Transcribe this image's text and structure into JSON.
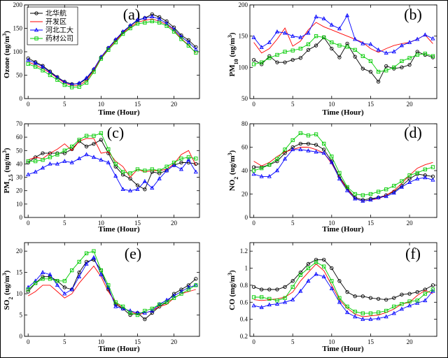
{
  "chart_data": [
    {
      "type": "line",
      "panel_label": "(a)",
      "xlabel": "Time (Hour)",
      "ylabel": "Ozone (ug/m³)",
      "ylabel_parts": [
        {
          "t": "Ozone (ug/m"
        },
        {
          "t": "3",
          "sup": true
        },
        {
          "t": ")"
        }
      ],
      "xlim": [
        -0.5,
        23.5
      ],
      "ylim": [
        0,
        200
      ],
      "xticks": [
        0,
        5,
        10,
        15,
        20
      ],
      "yticks": [
        0,
        50,
        100,
        150,
        200
      ],
      "legend": "top-left",
      "x": [
        0,
        1,
        2,
        3,
        4,
        5,
        6,
        7,
        8,
        9,
        10,
        11,
        12,
        13,
        14,
        15,
        16,
        17,
        18,
        19,
        20,
        21,
        22,
        23
      ],
      "series": [
        {
          "name": "北华航",
          "color": "#000000",
          "marker": "circle",
          "values": [
            86,
            78,
            70,
            58,
            46,
            36,
            31,
            32,
            42,
            62,
            88,
            108,
            125,
            142,
            155,
            167,
            172,
            180,
            174,
            165,
            152,
            135,
            125,
            110
          ]
        },
        {
          "name": "开发区",
          "color": "#ff0000",
          "marker": "none",
          "values": [
            78,
            72,
            64,
            55,
            44,
            33,
            28,
            28,
            38,
            60,
            87,
            106,
            123,
            140,
            152,
            163,
            167,
            170,
            165,
            158,
            146,
            128,
            114,
            97
          ]
        },
        {
          "name": "河北工大",
          "color": "#0000ff",
          "marker": "triangle",
          "values": [
            82,
            76,
            68,
            56,
            45,
            35,
            30,
            33,
            44,
            63,
            89,
            108,
            126,
            143,
            156,
            168,
            172,
            175,
            170,
            160,
            148,
            132,
            120,
            105
          ]
        },
        {
          "name": "药材公司",
          "color": "#00cc00",
          "marker": "square",
          "values": [
            74,
            68,
            60,
            50,
            40,
            29,
            24,
            25,
            34,
            57,
            85,
            104,
            120,
            138,
            150,
            160,
            162,
            165,
            162,
            155,
            143,
            127,
            113,
            98
          ]
        }
      ]
    },
    {
      "type": "line",
      "panel_label": "(b)",
      "xlabel": "Time (Hour)",
      "ylabel": "PM10 (ug/m³)",
      "ylabel_parts": [
        {
          "t": "PM"
        },
        {
          "t": "10",
          "sub": true
        },
        {
          "t": " (ug/m"
        },
        {
          "t": "3",
          "sup": true
        },
        {
          "t": ")"
        }
      ],
      "xlim": [
        -0.5,
        23.5
      ],
      "ylim": [
        50,
        200
      ],
      "xticks": [
        0,
        5,
        10,
        15,
        20
      ],
      "yticks": [
        50,
        100,
        150,
        200
      ],
      "x": [
        0,
        1,
        2,
        3,
        4,
        5,
        6,
        7,
        8,
        9,
        10,
        11,
        12,
        13,
        14,
        15,
        16,
        17,
        18,
        19,
        20,
        21,
        22,
        23
      ],
      "series": [
        {
          "name": "北华航",
          "color": "#000000",
          "marker": "circle",
          "values": [
            112,
            105,
            118,
            108,
            108,
            112,
            115,
            128,
            135,
            148,
            130,
            116,
            138,
            117,
            98,
            93,
            77,
            102,
            98,
            100,
            104,
            125,
            120,
            116
          ]
        },
        {
          "name": "开发区",
          "color": "#ff0000",
          "marker": "none",
          "values": [
            140,
            123,
            130,
            145,
            163,
            134,
            142,
            160,
            172,
            165,
            160,
            155,
            150,
            145,
            140,
            130,
            124,
            130,
            135,
            138,
            140,
            145,
            152,
            138
          ]
        },
        {
          "name": "河北工大",
          "color": "#0000ff",
          "marker": "triangle",
          "values": [
            148,
            132,
            140,
            157,
            155,
            150,
            148,
            155,
            181,
            178,
            168,
            162,
            183,
            145,
            138,
            137,
            128,
            123,
            125,
            135,
            140,
            145,
            152,
            146
          ]
        },
        {
          "name": "药材公司",
          "color": "#00cc00",
          "marker": "square",
          "values": [
            105,
            108,
            115,
            120,
            125,
            127,
            130,
            137,
            150,
            148,
            140,
            135,
            133,
            128,
            118,
            110,
            93,
            95,
            100,
            110,
            115,
            120,
            122,
            118
          ]
        }
      ]
    },
    {
      "type": "line",
      "panel_label": "(c)",
      "xlabel": "Time (Hour)",
      "ylabel": "PM2.5 (ug/m³)",
      "ylabel_parts": [
        {
          "t": "PM"
        },
        {
          "t": "2.5",
          "sub": true
        },
        {
          "t": " (ug/m"
        },
        {
          "t": "3",
          "sup": true
        },
        {
          "t": ")"
        }
      ],
      "xlim": [
        -0.5,
        23.5
      ],
      "ylim": [
        0,
        70
      ],
      "xticks": [
        0,
        5,
        10,
        15,
        20
      ],
      "yticks": [
        0,
        10,
        20,
        30,
        40,
        50,
        60,
        70
      ],
      "x": [
        0,
        1,
        2,
        3,
        4,
        5,
        6,
        7,
        8,
        9,
        10,
        11,
        12,
        13,
        14,
        15,
        16,
        17,
        18,
        19,
        20,
        21,
        22,
        23
      ],
      "series": [
        {
          "name": "北华航",
          "color": "#000000",
          "marker": "circle",
          "values": [
            41,
            45,
            48,
            48,
            48,
            48,
            51,
            57,
            53,
            55,
            58,
            48,
            38,
            32,
            29,
            24,
            21,
            34,
            33,
            35,
            39,
            41,
            41,
            40
          ]
        },
        {
          "name": "开发区",
          "color": "#ff0000",
          "marker": "none",
          "values": [
            43,
            45,
            44,
            48,
            51,
            55,
            50,
            57,
            59,
            59,
            48,
            49,
            42,
            38,
            30,
            36,
            34,
            35,
            35,
            36,
            40,
            47,
            50,
            39
          ]
        },
        {
          "name": "河北工大",
          "color": "#0000ff",
          "marker": "triangle",
          "values": [
            32,
            34,
            37,
            40,
            40,
            42,
            41,
            44,
            47,
            45,
            43,
            41,
            31,
            21,
            20,
            21,
            27,
            22,
            29,
            35,
            39,
            36,
            43,
            34
          ]
        },
        {
          "name": "药材公司",
          "color": "#00cc00",
          "marker": "square",
          "values": [
            42,
            42,
            43,
            45,
            47,
            50,
            53,
            58,
            61,
            61,
            63,
            51,
            40,
            34,
            33,
            36,
            35,
            36,
            35,
            38,
            41,
            44,
            45,
            44
          ]
        }
      ]
    },
    {
      "type": "line",
      "panel_label": "(d)",
      "xlabel": "Time (Hour)",
      "ylabel": "NO2 (ug/m³)",
      "ylabel_parts": [
        {
          "t": "NO"
        },
        {
          "t": "2",
          "sub": true
        },
        {
          "t": " (ug/m"
        },
        {
          "t": "3",
          "sup": true
        },
        {
          "t": ")"
        }
      ],
      "xlim": [
        -0.5,
        23.5
      ],
      "ylim": [
        0,
        80
      ],
      "xticks": [
        0,
        5,
        10,
        15,
        20
      ],
      "yticks": [
        0,
        20,
        40,
        60,
        80
      ],
      "x": [
        0,
        1,
        2,
        3,
        4,
        5,
        6,
        7,
        8,
        9,
        10,
        11,
        12,
        13,
        14,
        15,
        16,
        17,
        18,
        19,
        20,
        21,
        22,
        23
      ],
      "series": [
        {
          "name": "北华航",
          "color": "#000000",
          "marker": "circle",
          "values": [
            43,
            43,
            45,
            48,
            55,
            60,
            63,
            63,
            62,
            58,
            48,
            35,
            25,
            17,
            15,
            16,
            17,
            19,
            22,
            27,
            33,
            37,
            36,
            35
          ]
        },
        {
          "name": "开发区",
          "color": "#ff0000",
          "marker": "none",
          "values": [
            48,
            44,
            47,
            52,
            56,
            58,
            60,
            60,
            58,
            55,
            46,
            34,
            24,
            16,
            14,
            15,
            16,
            19,
            23,
            29,
            36,
            42,
            45,
            47
          ]
        },
        {
          "name": "河北工大",
          "color": "#0000ff",
          "marker": "triangle",
          "values": [
            37,
            35,
            35,
            40,
            50,
            58,
            58,
            57,
            56,
            55,
            47,
            33,
            23,
            16,
            14,
            15,
            17,
            18,
            21,
            26,
            30,
            33,
            34,
            32
          ]
        },
        {
          "name": "药材公司",
          "color": "#00cc00",
          "marker": "square",
          "values": [
            40,
            42,
            45,
            50,
            58,
            66,
            72,
            70,
            71,
            63,
            52,
            38,
            26,
            20,
            19,
            20,
            22,
            24,
            27,
            31,
            36,
            38,
            41,
            43
          ]
        }
      ]
    },
    {
      "type": "line",
      "panel_label": "(e)",
      "xlabel": "Time (Hour)",
      "ylabel": "SO2 (ug/m³)",
      "ylabel_parts": [
        {
          "t": "SO"
        },
        {
          "t": "2",
          "sub": true
        },
        {
          "t": " (ug/m"
        },
        {
          "t": "3",
          "sup": true
        },
        {
          "t": ")"
        }
      ],
      "xlim": [
        -0.5,
        23.5
      ],
      "ylim": [
        0,
        22
      ],
      "xticks": [
        0,
        5,
        10,
        15,
        20
      ],
      "yticks": [
        0,
        5,
        10,
        15,
        20
      ],
      "x": [
        0,
        1,
        2,
        3,
        4,
        5,
        6,
        7,
        8,
        9,
        10,
        11,
        12,
        13,
        14,
        15,
        16,
        17,
        18,
        19,
        20,
        21,
        22,
        23
      ],
      "series": [
        {
          "name": "北华航",
          "color": "#000000",
          "marker": "circle",
          "values": [
            10.5,
            12.5,
            14.0,
            14.0,
            13.0,
            11.5,
            11.0,
            15.0,
            17.5,
            18.0,
            15.5,
            11.0,
            7.5,
            6.5,
            5.0,
            5.5,
            4.0,
            5.5,
            7.0,
            8.0,
            10.0,
            11.0,
            12.0,
            13.5
          ]
        },
        {
          "name": "开发区",
          "color": "#ff0000",
          "marker": "none",
          "values": [
            9.5,
            10.5,
            12.0,
            12.0,
            10.5,
            9.0,
            10.0,
            12.5,
            14.5,
            16.5,
            14.0,
            10.5,
            8.0,
            6.5,
            6.0,
            5.0,
            5.5,
            6.0,
            7.0,
            7.5,
            9.0,
            10.0,
            10.5,
            11.0
          ]
        },
        {
          "name": "河北工大",
          "color": "#0000ff",
          "marker": "triangle",
          "values": [
            11.5,
            13.0,
            15.0,
            14.5,
            12.0,
            10.0,
            11.0,
            14.0,
            17.0,
            18.5,
            14.5,
            11.5,
            7.0,
            6.5,
            6.0,
            5.5,
            5.5,
            6.0,
            7.5,
            8.5,
            9.5,
            10.5,
            11.5,
            12.0
          ]
        },
        {
          "name": "药材公司",
          "color": "#00cc00",
          "marker": "square",
          "values": [
            11.0,
            12.5,
            13.5,
            13.5,
            13.0,
            13.0,
            15.5,
            17.5,
            19.5,
            20.0,
            15.5,
            12.0,
            8.0,
            7.0,
            5.5,
            5.0,
            6.0,
            6.5,
            7.5,
            8.0,
            9.0,
            10.0,
            11.0,
            12.0
          ]
        }
      ]
    },
    {
      "type": "line",
      "panel_label": "(f)",
      "xlabel": "Time (Hour)",
      "ylabel": "CO (mg/m³)",
      "ylabel_parts": [
        {
          "t": "CO (mg/m"
        },
        {
          "t": "3",
          "sup": true
        },
        {
          "t": ")"
        }
      ],
      "xlim": [
        -0.5,
        23.5
      ],
      "ylim": [
        0.2,
        1.3
      ],
      "xticks": [
        0,
        5,
        10,
        15,
        20
      ],
      "yticks": [
        0.2,
        0.4,
        0.6,
        0.8,
        1.0,
        1.2
      ],
      "x": [
        0,
        1,
        2,
        3,
        4,
        5,
        6,
        7,
        8,
        9,
        10,
        11,
        12,
        13,
        14,
        15,
        16,
        17,
        18,
        19,
        20,
        21,
        22,
        23
      ],
      "series": [
        {
          "name": "北华航",
          "color": "#000000",
          "marker": "circle",
          "values": [
            0.78,
            0.75,
            0.75,
            0.75,
            0.78,
            0.85,
            0.95,
            1.05,
            1.1,
            1.1,
            1.0,
            0.85,
            0.72,
            0.67,
            0.67,
            0.65,
            0.64,
            0.63,
            0.65,
            0.69,
            0.7,
            0.72,
            0.75,
            0.8
          ]
        },
        {
          "name": "开发区",
          "color": "#ff0000",
          "marker": "none",
          "values": [
            0.63,
            0.62,
            0.63,
            0.64,
            0.66,
            0.72,
            0.85,
            0.95,
            1.05,
            0.97,
            0.8,
            0.63,
            0.53,
            0.46,
            0.43,
            0.44,
            0.45,
            0.48,
            0.52,
            0.58,
            0.6,
            0.68,
            0.74,
            0.7
          ]
        },
        {
          "name": "河北工大",
          "color": "#0000ff",
          "marker": "triangle",
          "values": [
            0.56,
            0.54,
            0.57,
            0.58,
            0.6,
            0.63,
            0.73,
            0.85,
            0.93,
            0.9,
            0.76,
            0.6,
            0.48,
            0.43,
            0.4,
            0.4,
            0.41,
            0.43,
            0.47,
            0.52,
            0.56,
            0.59,
            0.62,
            0.73
          ]
        },
        {
          "name": "药材公司",
          "color": "#00cc00",
          "marker": "square",
          "values": [
            0.66,
            0.66,
            0.64,
            0.62,
            0.65,
            0.78,
            0.92,
            1.0,
            1.07,
            1.02,
            0.85,
            0.65,
            0.55,
            0.49,
            0.47,
            0.47,
            0.48,
            0.5,
            0.55,
            0.58,
            0.61,
            0.62,
            0.7,
            0.75
          ]
        }
      ]
    }
  ]
}
